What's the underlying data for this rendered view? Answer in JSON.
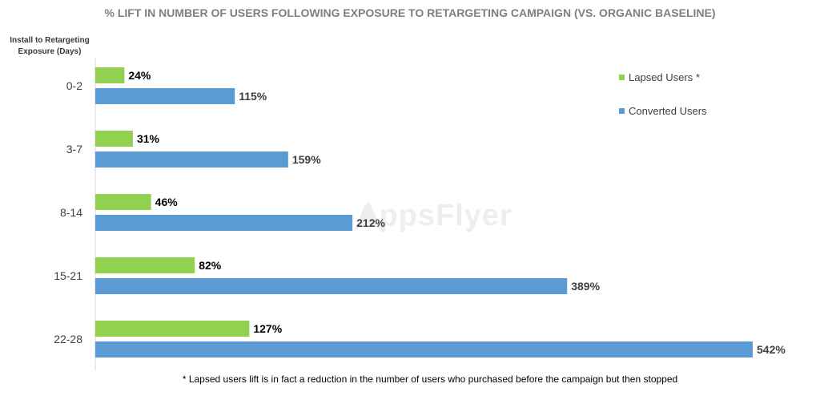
{
  "title": "% LIFT IN NUMBER OF USERS FOLLOWING EXPOSURE TO RETARGETING CAMPAIGN (VS. ORGANIC BASELINE)",
  "y_axis_caption": "Install to Retargeting Exposure (Days)",
  "footnote": "* Lapsed users lift is in fact a reduction in the number of users who purchased before the campaign but then stopped",
  "watermark": "AppsFlyer",
  "colors": {
    "lapsed": "#92d050",
    "converted": "#5b9bd5"
  },
  "chart_data": {
    "type": "bar",
    "orientation": "horizontal",
    "categories": [
      "0-2",
      "3-7",
      "8-14",
      "15-21",
      "22-28"
    ],
    "series": [
      {
        "name": "Lapsed Users *",
        "values": [
          24,
          31,
          46,
          82,
          127
        ],
        "labels": [
          "24%",
          "31%",
          "46%",
          "82%",
          "127%"
        ]
      },
      {
        "name": "Converted Users",
        "values": [
          115,
          159,
          212,
          389,
          542
        ],
        "labels": [
          "115%",
          "159%",
          "212%",
          "389%",
          "542%"
        ]
      }
    ],
    "xlim": [
      0,
      542
    ],
    "legend_position": "top-right",
    "grid": false
  }
}
